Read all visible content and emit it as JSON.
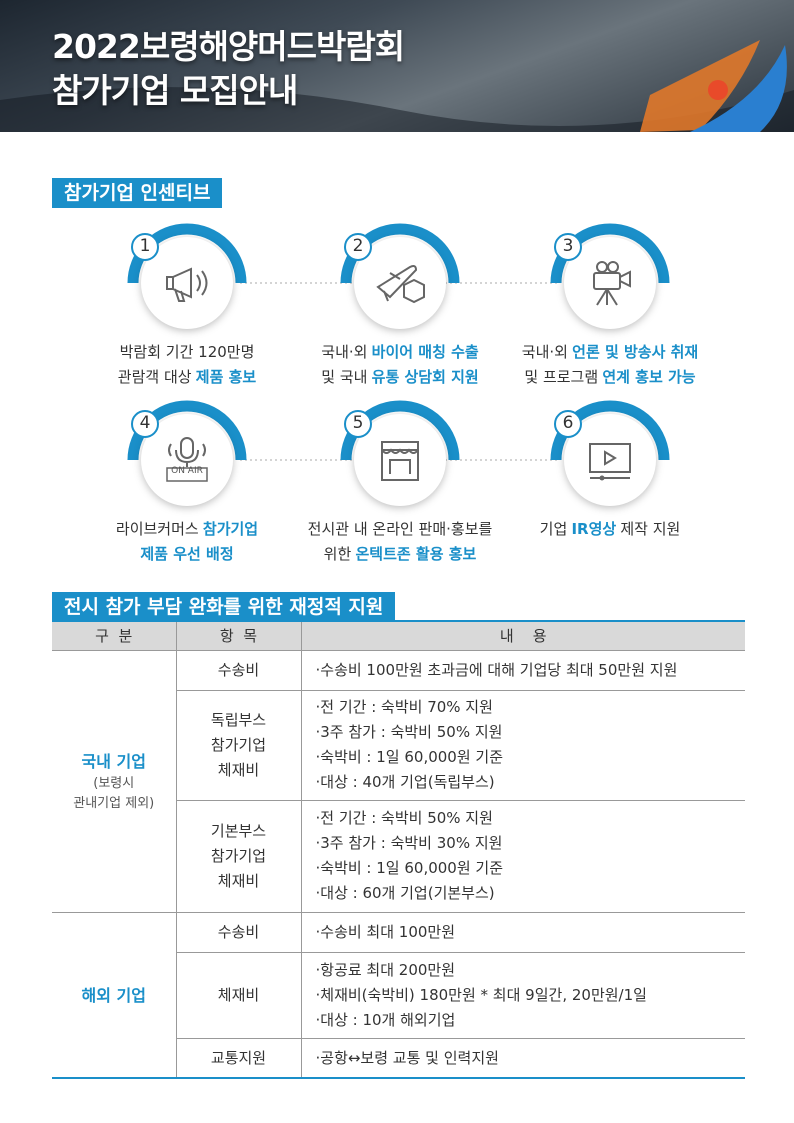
{
  "header": {
    "title": [
      "2022보령해양머드박람회",
      "참가기업 모집안내"
    ]
  },
  "incentives": {
    "title": "참가기업 인센티브",
    "items": [
      {
        "number": "1",
        "lines": [
          [
            {
              "text": "박람회 기간 120만명"
            }
          ],
          [
            {
              "text": "관람객 대상"
            },
            {
              "text": "제품 홍보",
              "accent": true
            }
          ]
        ]
      },
      {
        "number": "2",
        "lines": [
          [
            {
              "text": "국내·외"
            },
            {
              "text": "바이어 매칭 수출",
              "accent": true
            }
          ],
          [
            {
              "text": "및 국내"
            },
            {
              "text": "유통 상담회 지원",
              "accent": true
            }
          ]
        ]
      },
      {
        "number": "3",
        "lines": [
          [
            {
              "text": "국내·외"
            },
            {
              "text": "언론 및 방송사 취재",
              "accent": true
            }
          ],
          [
            {
              "text": "및 프로그램"
            },
            {
              "text": "연계 홍보 가능",
              "accent": true
            }
          ]
        ]
      },
      {
        "number": "4",
        "icon_label": "ON AIR",
        "lines": [
          [
            {
              "text": "라이브커머스"
            },
            {
              "text": "참가기업",
              "accent": true
            }
          ],
          [
            {
              "text": "제품 우선 배정",
              "accent": true
            }
          ]
        ]
      },
      {
        "number": "5",
        "lines": [
          [
            {
              "text": "전시관 내 온라인 판매·홍보를"
            }
          ],
          [
            {
              "text": "위한"
            },
            {
              "text": "온텍트존 활용 홍보",
              "accent": true
            }
          ]
        ]
      },
      {
        "number": "6",
        "lines": [
          [
            {
              "text": "기업"
            },
            {
              "text": "IR영상",
              "accent": true
            },
            {
              "text": "제작 지원"
            }
          ]
        ]
      }
    ]
  },
  "support": {
    "title": "전시 참가 부담 완화를 위한 재정적 지원",
    "table": {
      "columns": [
        "구  분",
        "항  목",
        "내    용"
      ],
      "groups": [
        {
          "name": "국내 기업",
          "note": [
            "(보령시",
            "관내기업 제외)"
          ],
          "rows": [
            {
              "item": [
                "수송비"
              ],
              "content": [
                "·수송비 100만원 초과금에 대해 기업당 최대 50만원 지원"
              ]
            },
            {
              "item": [
                "독립부스",
                "참가기업",
                "체재비"
              ],
              "content": [
                "·전 기간 : 숙박비 70% 지원",
                "·3주 참가 : 숙박비 50% 지원",
                "·숙박비 : 1일 60,000원 기준",
                "·대상 : 40개 기업(독립부스)"
              ]
            },
            {
              "item": [
                "기본부스",
                "참가기업",
                "체재비"
              ],
              "content": [
                "·전 기간 : 숙박비 50% 지원",
                "·3주 참가 : 숙박비 30% 지원",
                "·숙박비 : 1일 60,000원 기준",
                "·대상 : 60개 기업(기본부스)"
              ]
            }
          ]
        },
        {
          "name": "해외 기업",
          "rows": [
            {
              "item": [
                "수송비"
              ],
              "content": [
                "·수송비 최대 100만원"
              ]
            },
            {
              "item": [
                "체재비"
              ],
              "content": [
                "·항공료 최대 200만원",
                "·체재비(숙박비) 180만원 * 최대 9일간, 20만원/1일",
                "·대상 : 10개 해외기업"
              ]
            },
            {
              "item": [
                "교통지원"
              ],
              "content": [
                "·공항↔보령 교통 및 인력지원"
              ]
            }
          ]
        }
      ]
    }
  }
}
